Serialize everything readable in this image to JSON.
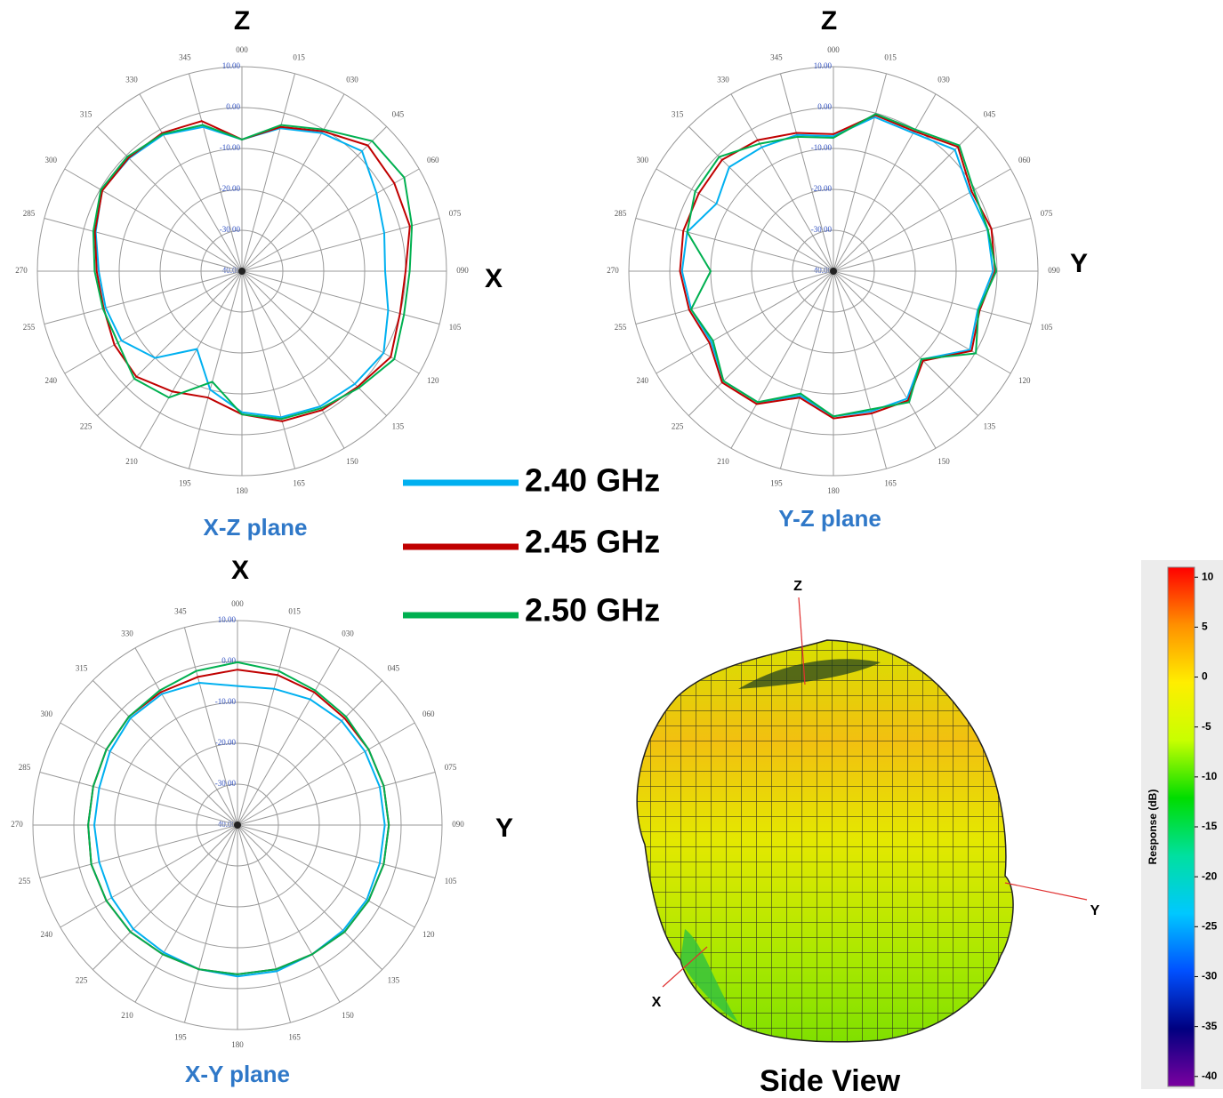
{
  "chart_data": [
    {
      "type": "polar",
      "top_label": "Z",
      "side_label": "X",
      "plane_label": "X-Z plane",
      "theta": [
        0,
        15,
        30,
        45,
        60,
        75,
        90,
        105,
        120,
        135,
        150,
        165,
        180,
        195,
        210,
        225,
        240,
        255,
        270,
        285,
        300,
        315,
        330,
        345
      ],
      "thetaticks": [
        {
          "value": 0,
          "label": "000"
        },
        {
          "value": 15,
          "label": "015"
        },
        {
          "value": 30,
          "label": "030"
        },
        {
          "value": 45,
          "label": "045"
        },
        {
          "value": 60,
          "label": "060"
        },
        {
          "value": 75,
          "label": "075"
        },
        {
          "value": 90,
          "label": "090"
        },
        {
          "value": 105,
          "label": "105"
        },
        {
          "value": 120,
          "label": "120"
        },
        {
          "value": 135,
          "label": "135"
        },
        {
          "value": 150,
          "label": "150"
        },
        {
          "value": 165,
          "label": "165"
        },
        {
          "value": 180,
          "label": "180"
        },
        {
          "value": 195,
          "label": "195"
        },
        {
          "value": 210,
          "label": "210"
        },
        {
          "value": 225,
          "label": "225"
        },
        {
          "value": 240,
          "label": "240"
        },
        {
          "value": 255,
          "label": "255"
        },
        {
          "value": 270,
          "label": "270"
        },
        {
          "value": 285,
          "label": "285"
        },
        {
          "value": 300,
          "label": "300"
        },
        {
          "value": 315,
          "label": "315"
        },
        {
          "value": 330,
          "label": "330"
        },
        {
          "value": 345,
          "label": "345"
        }
      ],
      "rlim": [
        -40,
        10
      ],
      "rticks": [
        {
          "value": -40,
          "label": "-40.00"
        },
        {
          "value": -30,
          "label": "-30.00"
        },
        {
          "value": -20,
          "label": "-20.00"
        },
        {
          "value": -10,
          "label": "-10.00"
        },
        {
          "value": 0,
          "label": "0.00"
        },
        {
          "value": 10,
          "label": "10.00"
        }
      ],
      "series": [
        {
          "name": "2.40 GHz",
          "color": "#00b0f0",
          "values": [
            -7.8,
            -3.8,
            -1,
            1.5,
            -2,
            -4,
            -5,
            -3,
            0,
            -1,
            -1.8,
            -3,
            -5.5,
            -10,
            -18,
            -10,
            -6,
            -5.5,
            -5,
            -3,
            -0.5,
            -1,
            -1.5,
            -3.5
          ]
        },
        {
          "name": "2.45 GHz",
          "color": "#c00000",
          "values": [
            -7.8,
            -3.5,
            -0.5,
            3.5,
            3,
            2.5,
            0,
            0,
            2,
            0,
            -0.8,
            -2,
            -5,
            -8,
            -6,
            -3.5,
            -4,
            -5,
            -4.5,
            -2.8,
            -0.6,
            -0.8,
            -1,
            -2
          ]
        },
        {
          "name": "2.50 GHz",
          "color": "#00b050",
          "values": [
            -7.8,
            -3,
            0,
            5,
            5.8,
            3,
            1,
            1,
            3,
            0.4,
            -1.3,
            -2.6,
            -5,
            -12,
            -4.3,
            -2.8,
            -5,
            -4.8,
            -4,
            -2.4,
            -0.2,
            -0.4,
            -1.3,
            -3
          ]
        }
      ]
    },
    {
      "type": "polar",
      "top_label": "Z",
      "side_label": "Y",
      "plane_label": "Y-Z plane",
      "theta": [
        0,
        15,
        30,
        45,
        60,
        75,
        90,
        105,
        120,
        135,
        150,
        165,
        180,
        195,
        210,
        225,
        240,
        255,
        270,
        285,
        300,
        315,
        330,
        345
      ],
      "thetaticks": [
        {
          "value": 0,
          "label": "000"
        },
        {
          "value": 15,
          "label": "015"
        },
        {
          "value": 30,
          "label": "030"
        },
        {
          "value": 45,
          "label": "045"
        },
        {
          "value": 60,
          "label": "060"
        },
        {
          "value": 75,
          "label": "075"
        },
        {
          "value": 90,
          "label": "090"
        },
        {
          "value": 105,
          "label": "105"
        },
        {
          "value": 120,
          "label": "120"
        },
        {
          "value": 135,
          "label": "135"
        },
        {
          "value": 150,
          "label": "150"
        },
        {
          "value": 165,
          "label": "165"
        },
        {
          "value": 180,
          "label": "180"
        },
        {
          "value": 195,
          "label": "195"
        },
        {
          "value": 210,
          "label": "210"
        },
        {
          "value": 225,
          "label": "225"
        },
        {
          "value": 240,
          "label": "240"
        },
        {
          "value": 255,
          "label": "255"
        },
        {
          "value": 270,
          "label": "270"
        },
        {
          "value": 285,
          "label": "285"
        },
        {
          "value": 300,
          "label": "300"
        },
        {
          "value": 315,
          "label": "315"
        },
        {
          "value": 330,
          "label": "330"
        },
        {
          "value": 345,
          "label": "345"
        }
      ],
      "rlim": [
        -40,
        10
      ],
      "rticks": [
        {
          "value": -40,
          "label": "-40.00"
        },
        {
          "value": -30,
          "label": "-30.00"
        },
        {
          "value": -20,
          "label": "-20.00"
        },
        {
          "value": -10,
          "label": "-10.00"
        },
        {
          "value": 0,
          "label": "0.00"
        },
        {
          "value": 10,
          "label": "10.00"
        }
      ],
      "series": [
        {
          "color": "#00b0f0",
          "values": [
            -7,
            -1,
            -1,
            2,
            -1.5,
            -1,
            -1,
            -3.5,
            -1.5,
            -9.5,
            -4,
            -4.5,
            -4.5,
            -8.5,
            -3,
            -2,
            -5.5,
            -4,
            -3,
            -3,
            -7,
            -4,
            -5,
            -5.5
          ]
        },
        {
          "color": "#c00000",
          "values": [
            -6.5,
            -0.5,
            -0.5,
            3,
            -1,
            0,
            -0.5,
            -3,
            -1,
            -9,
            -3.5,
            -4,
            -4,
            -8,
            -2.5,
            -1.5,
            -5,
            -3.5,
            -2.5,
            -2,
            -2,
            -1.5,
            -3,
            -5
          ]
        },
        {
          "color": "#00b050",
          "values": [
            -7.4,
            -0.2,
            0,
            3.5,
            -0.4,
            -0.9,
            -0.2,
            -3.3,
            0.2,
            -9.6,
            -3,
            -5,
            -4.5,
            -9,
            -3,
            -2,
            -6,
            -4,
            -10,
            -3,
            -1,
            -0.5,
            -4,
            -6
          ]
        }
      ]
    },
    {
      "type": "polar",
      "top_label": "X",
      "side_label": "Y",
      "plane_label": "X-Y plane",
      "theta": [
        0,
        15,
        30,
        45,
        60,
        75,
        90,
        105,
        120,
        135,
        150,
        165,
        180,
        195,
        210,
        225,
        240,
        255,
        270,
        285,
        300,
        315,
        330,
        345
      ],
      "thetaticks": [
        {
          "value": 0,
          "label": "000"
        },
        {
          "value": 15,
          "label": "015"
        },
        {
          "value": 30,
          "label": "030"
        },
        {
          "value": 45,
          "label": "045"
        },
        {
          "value": 60,
          "label": "060"
        },
        {
          "value": 75,
          "label": "075"
        },
        {
          "value": 90,
          "label": "090"
        },
        {
          "value": 105,
          "label": "105"
        },
        {
          "value": 120,
          "label": "120"
        },
        {
          "value": 135,
          "label": "135"
        },
        {
          "value": 150,
          "label": "150"
        },
        {
          "value": 165,
          "label": "165"
        },
        {
          "value": 180,
          "label": "180"
        },
        {
          "value": 195,
          "label": "195"
        },
        {
          "value": 210,
          "label": "210"
        },
        {
          "value": 225,
          "label": "225"
        },
        {
          "value": 240,
          "label": "240"
        },
        {
          "value": 255,
          "label": "255"
        },
        {
          "value": 270,
          "label": "270"
        },
        {
          "value": 285,
          "label": "285"
        },
        {
          "value": 300,
          "label": "300"
        },
        {
          "value": 315,
          "label": "315"
        },
        {
          "value": 330,
          "label": "330"
        },
        {
          "value": 345,
          "label": "345"
        }
      ],
      "rlim": [
        -40,
        10
      ],
      "rticks": [
        {
          "value": -40,
          "label": "-40.00"
        },
        {
          "value": -30,
          "label": "-30.00"
        },
        {
          "value": -20,
          "label": "-20.00"
        },
        {
          "value": -10,
          "label": "-10.00"
        },
        {
          "value": 0,
          "label": "0.00"
        },
        {
          "value": 10,
          "label": "10.00"
        }
      ],
      "series": [
        {
          "color": "#00b0f0",
          "values": [
            -6,
            -5.5,
            -4.5,
            -4,
            -4,
            -4,
            -4,
            -4,
            -3.5,
            -3.5,
            -3.5,
            -3,
            -3,
            -3.5,
            -4,
            -4,
            -4.5,
            -5,
            -5,
            -5,
            -4,
            -3,
            -3,
            -4
          ]
        },
        {
          "color": "#c00000",
          "values": [
            -2,
            -2,
            -2.5,
            -3,
            -3,
            -3,
            -3,
            -3,
            -3,
            -3,
            -3.5,
            -3.5,
            -3.5,
            -3.5,
            -3.5,
            -3,
            -3,
            -3,
            -3.5,
            -3.5,
            -3,
            -2.5,
            -2.5,
            -2.5
          ]
        },
        {
          "color": "#00b050",
          "values": [
            -0.2,
            -1,
            -2,
            -2.5,
            -3,
            -3,
            -3,
            -3,
            -3,
            -3,
            -3.5,
            -3.5,
            -3.5,
            -3.5,
            -3.5,
            -3,
            -3,
            -3,
            -3.5,
            -3.5,
            -3,
            -2.5,
            -2,
            -1
          ]
        }
      ]
    },
    {
      "type": "surface3d",
      "title": "Side View",
      "x_label": "X",
      "y_label": "Y",
      "z_label": "Z",
      "colorbar_label": "Response (dB)",
      "clim": [
        -41,
        11
      ],
      "cticks": [
        10,
        5,
        0,
        -5,
        -10,
        -15,
        -20,
        -25,
        -30,
        -35,
        -40
      ],
      "colormap": [
        "#7b00a0",
        "#000080",
        "#0050ff",
        "#00c8ff",
        "#00e0a0",
        "#00dd00",
        "#c8ff00",
        "#ffee00",
        "#ff9000",
        "#ff0000"
      ]
    }
  ]
}
